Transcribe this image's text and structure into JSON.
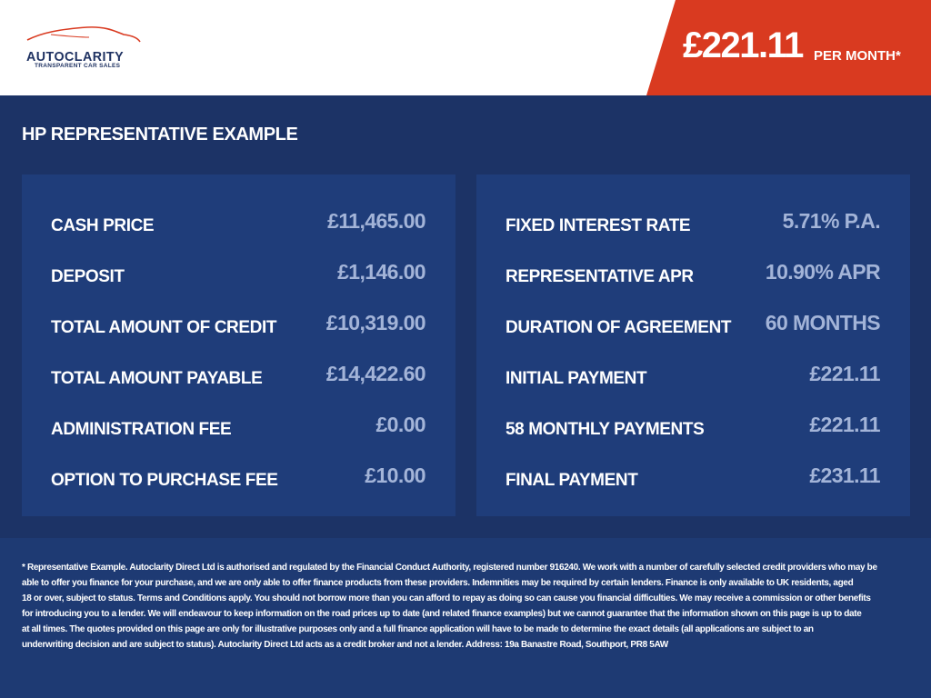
{
  "brand": {
    "name": "AUTOCLARITY",
    "tagline": "TRANSPARENT CAR SALES"
  },
  "header": {
    "price": "£221.11",
    "per_month": "PER MONTH*"
  },
  "section_title": "HP REPRESENTATIVE EXAMPLE",
  "left": [
    {
      "label": "CASH PRICE",
      "value": "£11,465.00"
    },
    {
      "label": "DEPOSIT",
      "value": "£1,146.00"
    },
    {
      "label": "TOTAL AMOUNT OF CREDIT",
      "value": "£10,319.00"
    },
    {
      "label": "TOTAL AMOUNT PAYABLE",
      "value": "£14,422.60"
    },
    {
      "label": "ADMINISTRATION FEE",
      "value": "£0.00"
    },
    {
      "label": "OPTION TO PURCHASE FEE",
      "value": "£10.00"
    }
  ],
  "right": [
    {
      "label": "FIXED INTEREST RATE",
      "value": "5.71% P.A."
    },
    {
      "label": "REPRESENTATIVE APR",
      "value": "10.90% APR"
    },
    {
      "label": "DURATION OF AGREEMENT",
      "value": "60 MONTHS"
    },
    {
      "label": "INITIAL PAYMENT",
      "value": "£221.11"
    },
    {
      "label": "58 MONTHLY PAYMENTS",
      "value": "£221.11"
    },
    {
      "label": "FINAL PAYMENT",
      "value": "£231.11"
    }
  ],
  "disclaimer": [
    "* Representative Example. Autoclarity Direct Ltd is authorised and regulated by the Financial Conduct Authority, registered number 916240. We work with a number of carefully selected credit providers who may be",
    "able to offer you finance for your purchase, and we are only able to offer finance products from these providers. Indemnities may be required by certain lenders. Finance is only available to UK residents, aged",
    "18 or over, subject to status. Terms and Conditions apply. You should not borrow more than you can afford to repay as doing so can cause you financial difficulties. We may receive a commission or other benefits",
    "for introducing you to a lender. We will endeavour to keep information on the road prices up to date (and related finance examples) but we cannot guarantee that the information shown on this page is up to date",
    "at all times. The quotes provided on this page are only for illustrative purposes only and a full finance application will have to be made to determine the exact details (all applications are subject to an",
    "underwriting decision and are subject to status). Autoclarity Direct Ltd acts as a credit broker and not a lender. Address: 19a Banastre Road, Southport, PR8 5AW"
  ],
  "colors": {
    "accent": "#d93a20",
    "background": "#1c3366",
    "panel": "#1f3d7a",
    "value_text": "#a3b4d8"
  }
}
